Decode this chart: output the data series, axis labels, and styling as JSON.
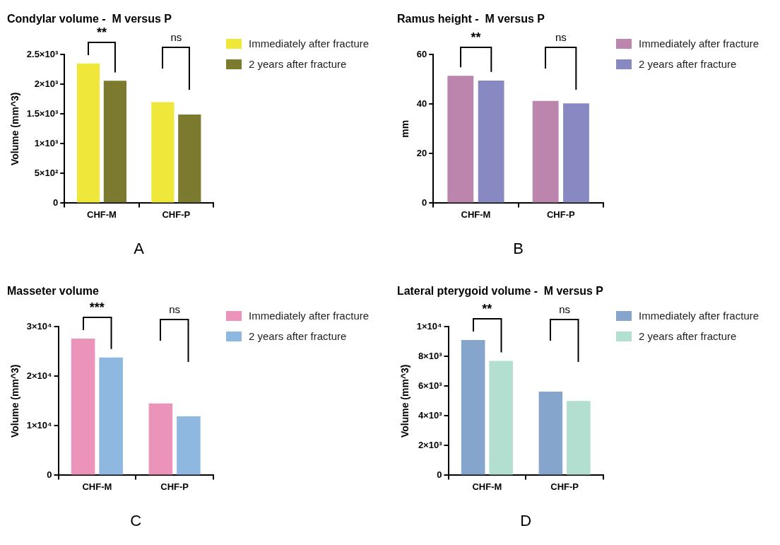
{
  "chart_data": [
    {
      "type": "bar",
      "title": "Condylar volume -  M versus P",
      "ylabel": "Volume (mm^3)",
      "categories": [
        "CHF-M",
        "CHF-P"
      ],
      "series": [
        {
          "name": "Immediately after fracture",
          "color": "#efe83a",
          "values": [
            2350,
            1700
          ]
        },
        {
          "name": "2 years after fracture",
          "color": "#7c7a2e",
          "values": [
            2060,
            1490
          ]
        }
      ],
      "ylim": [
        0,
        2500
      ],
      "yticks": [
        0,
        {
          "value": 500,
          "label": "5×10²"
        },
        {
          "value": 1000,
          "label": "1×10³"
        },
        {
          "value": 1500,
          "label": "1.5×10³"
        },
        {
          "value": 2000,
          "label": "2×10³"
        },
        {
          "value": 2500,
          "label": "2.5×10³"
        }
      ],
      "grid": false,
      "legend": "top right",
      "annotations": [
        "**",
        "ns",
        "A"
      ]
    },
    {
      "type": "bar",
      "title": "Ramus height -  M versus P",
      "ylabel": "mm",
      "categories": [
        "CHF-M",
        "CHF-P"
      ],
      "series": [
        {
          "name": "Immediately after fracture",
          "color": "#bc85ae",
          "values": [
            51.4,
            41.3
          ]
        },
        {
          "name": "2 years after fracture",
          "color": "#8889c2",
          "values": [
            49.5,
            40.3
          ]
        }
      ],
      "ylim": [
        0,
        60
      ],
      "yticks": [
        0,
        20,
        40,
        60
      ],
      "grid": false,
      "legend": "top right",
      "annotations": [
        "**",
        "ns",
        "B"
      ]
    },
    {
      "type": "bar",
      "title": "Masseter volume",
      "ylabel": "Volume (mm^3)",
      "categories": [
        "CHF-M",
        "CHF-P"
      ],
      "series": [
        {
          "name": "Immediately after fracture",
          "color": "#ec93b9",
          "values": [
            27600,
            14500
          ]
        },
        {
          "name": "2 years after fracture",
          "color": "#8fb8e1",
          "values": [
            23800,
            11900
          ]
        }
      ],
      "ylim": [
        0,
        30000
      ],
      "yticks": [
        0,
        {
          "value": 10000,
          "label": "1×10⁴"
        },
        {
          "value": 20000,
          "label": "2×10⁴"
        },
        {
          "value": 30000,
          "label": "3×10⁴"
        }
      ],
      "grid": false,
      "legend": "top right",
      "annotations": [
        "***",
        "ns",
        "C"
      ]
    },
    {
      "type": "bar",
      "title": "Lateral pterygoid volume -  M versus P",
      "ylabel": "Volume (mm^3)",
      "categories": [
        "CHF-M",
        "CHF-P"
      ],
      "series": [
        {
          "name": "Immediately after fracture",
          "color": "#86a5cc",
          "values": [
            9100,
            5630
          ]
        },
        {
          "name": "2 years after fracture",
          "color": "#b3dfd0",
          "values": [
            7700,
            5000
          ]
        }
      ],
      "ylim": [
        0,
        10000
      ],
      "yticks": [
        0,
        {
          "value": 2000,
          "label": "2×10³"
        },
        {
          "value": 4000,
          "label": "4×10³"
        },
        {
          "value": 6000,
          "label": "6×10³"
        },
        {
          "value": 8000,
          "label": "8×10³"
        },
        {
          "value": 10000,
          "label": "1×10⁴"
        }
      ],
      "grid": false,
      "legend": "top right",
      "annotations": [
        "**",
        "ns",
        "D"
      ]
    }
  ]
}
